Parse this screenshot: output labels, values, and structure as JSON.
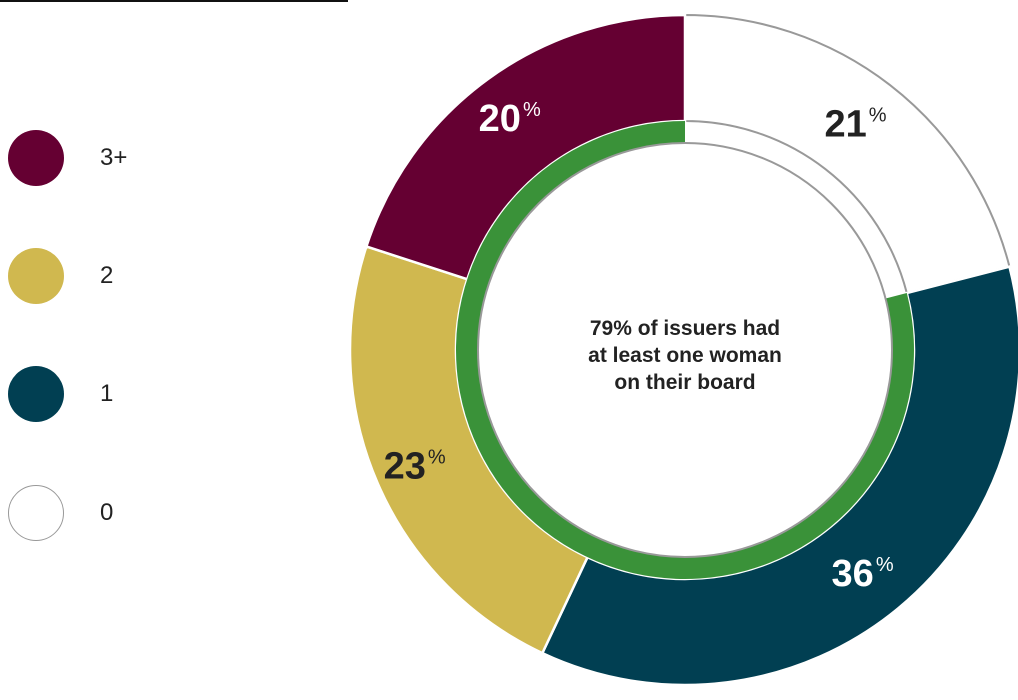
{
  "colors": {
    "3+": "#650032",
    "2": "#d0b84f",
    "1": "#013f52",
    "0": "#ffffff",
    "inner_ring": "#3a9239",
    "outline": "#999999"
  },
  "legend": {
    "items": [
      {
        "label": "3+",
        "color": "#650032"
      },
      {
        "label": "2",
        "color": "#d0b84f"
      },
      {
        "label": "1",
        "color": "#013f52"
      },
      {
        "label": "0",
        "color": "#ffffff"
      }
    ]
  },
  "center_text": {
    "line1": "79% of issuers had",
    "line2": "at least one woman",
    "line3": "on their board"
  },
  "chart_data": {
    "type": "pie",
    "style": "donut",
    "start": "12 o'clock",
    "direction": "clockwise",
    "slices": [
      {
        "category": "0",
        "value": 21,
        "label": "21",
        "unit": "%",
        "color": "#ffffff",
        "label_color": "#222222"
      },
      {
        "category": "1",
        "value": 36,
        "label": "36",
        "unit": "%",
        "color": "#013f52",
        "label_color": "#ffffff"
      },
      {
        "category": "2",
        "value": 23,
        "label": "23",
        "unit": "%",
        "color": "#d0b84f",
        "label_color": "#222222"
      },
      {
        "category": "3+",
        "value": 20,
        "label": "20",
        "unit": "%",
        "color": "#650032",
        "label_color": "#ffffff"
      }
    ],
    "inner_ring": {
      "covers_categories": [
        "1",
        "2",
        "3+"
      ],
      "color": "#3a9239"
    },
    "legend_placement": "left"
  }
}
